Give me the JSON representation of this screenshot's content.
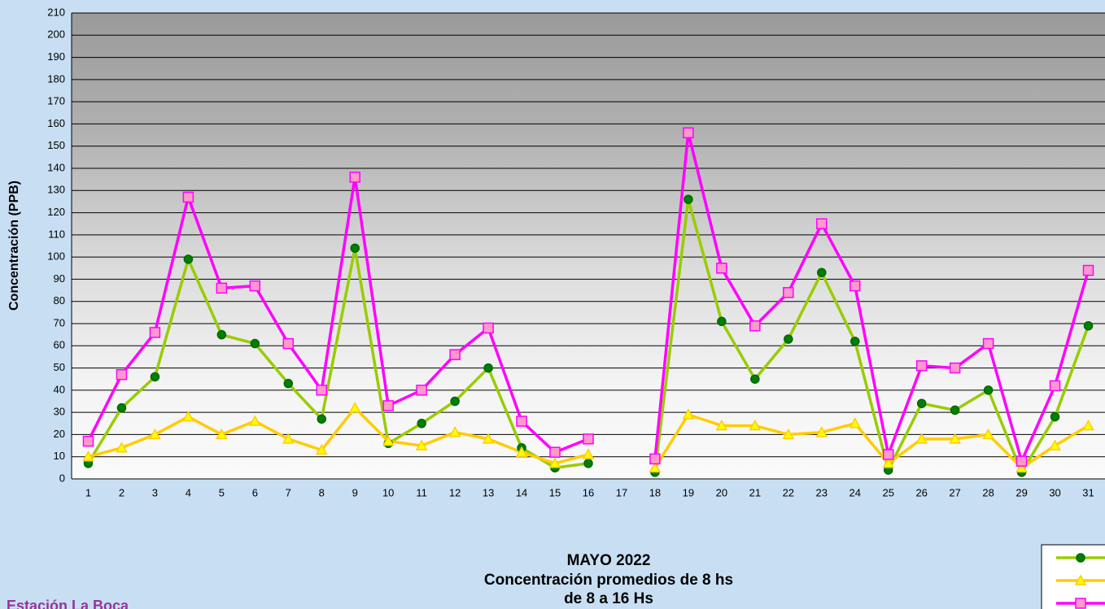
{
  "chart_data": {
    "type": "line",
    "title": [
      "MAYO 2022",
      "Concentración promedios de 8 hs",
      "de 8 a 16 Hs"
    ],
    "station": "Estación La Boca",
    "ylabel": "Concentración (PPB)",
    "categories": [
      "1",
      "2",
      "3",
      "4",
      "5",
      "6",
      "7",
      "8",
      "9",
      "10",
      "11",
      "12",
      "13",
      "14",
      "15",
      "16",
      "17",
      "18",
      "19",
      "20",
      "21",
      "22",
      "23",
      "24",
      "25",
      "26",
      "27",
      "28",
      "29",
      "30",
      "31"
    ],
    "series": [
      {
        "color": "#99cc00",
        "marker_color": "#008000",
        "marker": "circle",
        "values": [
          7,
          32,
          46,
          99,
          65,
          61,
          43,
          27,
          104,
          16,
          25,
          35,
          50,
          14,
          5,
          7,
          null,
          3,
          126,
          71,
          45,
          63,
          93,
          62,
          4,
          34,
          31,
          40,
          3,
          28,
          69
        ]
      },
      {
        "color": "#ffcc00",
        "marker_color": "#ffff00",
        "marker": "triangle",
        "values": [
          10,
          14,
          20,
          28,
          20,
          26,
          18,
          13,
          32,
          17,
          15,
          21,
          18,
          12,
          7,
          11,
          null,
          5,
          29,
          24,
          24,
          20,
          21,
          25,
          7,
          18,
          18,
          20,
          5,
          15,
          24
        ]
      },
      {
        "color": "#ff00ff",
        "marker_color": "#ff99cc",
        "marker": "square",
        "values": [
          17,
          47,
          66,
          127,
          86,
          87,
          61,
          40,
          136,
          33,
          40,
          56,
          68,
          26,
          12,
          18,
          null,
          9,
          156,
          95,
          69,
          84,
          115,
          87,
          11,
          51,
          50,
          61,
          8,
          42,
          94
        ]
      }
    ],
    "ylim": [
      0,
      210
    ],
    "yticks": [
      0,
      10,
      20,
      30,
      40,
      50,
      60,
      70,
      80,
      90,
      100,
      110,
      120,
      130,
      140,
      150,
      160,
      170,
      180,
      190,
      200,
      210
    ],
    "grid": true,
    "legend": "bottom-right"
  }
}
